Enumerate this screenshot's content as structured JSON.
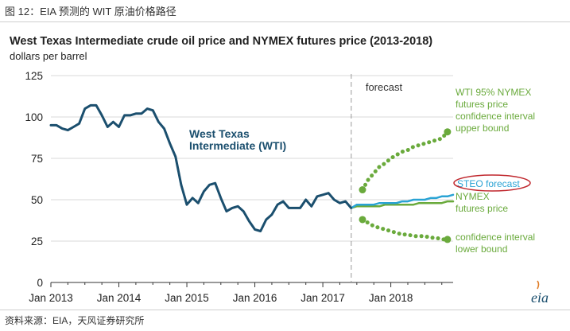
{
  "figure_title": "图 12：EIA 预测的 WIT 原油价格路径",
  "source_note": "资料来源：EIA，天风证券研究所",
  "logo_text": "eia",
  "chart_data": {
    "type": "line",
    "title": "West Texas Intermediate crude oil price and NYMEX futures price (2013-2018)",
    "ylabel": "dollars per barrel",
    "xlabel": "",
    "ylim": [
      0,
      125
    ],
    "y_ticks": [
      0,
      25,
      50,
      75,
      100,
      125
    ],
    "x_ticks": [
      {
        "label": "Jan 2013",
        "t": 0
      },
      {
        "label": "Jan 2014",
        "t": 12
      },
      {
        "label": "Jan 2015",
        "t": 24
      },
      {
        "label": "Jan 2016",
        "t": 36
      },
      {
        "label": "Jan 2017",
        "t": 48
      },
      {
        "label": "Jan 2018",
        "t": 60
      }
    ],
    "x_range": [
      0,
      71
    ],
    "grid": "horizontal",
    "forecast_start_t": 54,
    "forecast_label": "forecast",
    "colors": {
      "wti": "#1b4f6e",
      "steo": "#2aa3d4",
      "nymex": "#6aaa3c",
      "confidence": "#6aaa3c",
      "highlight": "#c0272d",
      "grid": "#d9d9d9"
    },
    "series": [
      {
        "name": "West Texas Intermediate (WTI)",
        "t_start": 0,
        "values": [
          95,
          95,
          93,
          92,
          94,
          96,
          105,
          107,
          107,
          101,
          94,
          97,
          94,
          101,
          101,
          102,
          102,
          105,
          104,
          97,
          93,
          84,
          76,
          59,
          47,
          51,
          48,
          55,
          59,
          60,
          51,
          43,
          45,
          46,
          43,
          37,
          32,
          31,
          38,
          41,
          47,
          49,
          45,
          45,
          45,
          50,
          46,
          52,
          53,
          54,
          50,
          48,
          49,
          45
        ]
      },
      {
        "name": "STEO forecast",
        "t_start": 53,
        "values": [
          45,
          47,
          47,
          47,
          47,
          48,
          48,
          48,
          48,
          49,
          49,
          50,
          50,
          50,
          51,
          51,
          52,
          52,
          53
        ]
      },
      {
        "name": "NYMEX futures price",
        "t_start": 53,
        "values": [
          45,
          46,
          46,
          46,
          46,
          46,
          47,
          47,
          47,
          47,
          47,
          47,
          48,
          48,
          48,
          48,
          48,
          49,
          49
        ]
      },
      {
        "name": "WTI 95% NYMEX futures price confidence interval upper bound",
        "t_start": 55,
        "values": [
          56,
          62,
          66,
          70,
          72,
          75,
          77,
          79,
          80,
          82,
          83,
          84,
          85,
          86,
          87,
          91
        ]
      },
      {
        "name": "confidence interval lower bound",
        "t_start": 55,
        "values": [
          38,
          36,
          34,
          33,
          32,
          31,
          30,
          29,
          29,
          28,
          28,
          28,
          27,
          27,
          26,
          26
        ]
      }
    ],
    "annotations": {
      "wti_label": [
        "West Texas",
        "Intermediate (WTI)"
      ],
      "upper_label": [
        "WTI 95% NYMEX",
        "futures price",
        "confidence interval",
        "upper bound"
      ],
      "steo_label": "STEO forecast",
      "nymex_label": [
        "NYMEX",
        "futures price"
      ],
      "lower_label": [
        "confidence interval",
        "lower bound"
      ]
    }
  }
}
